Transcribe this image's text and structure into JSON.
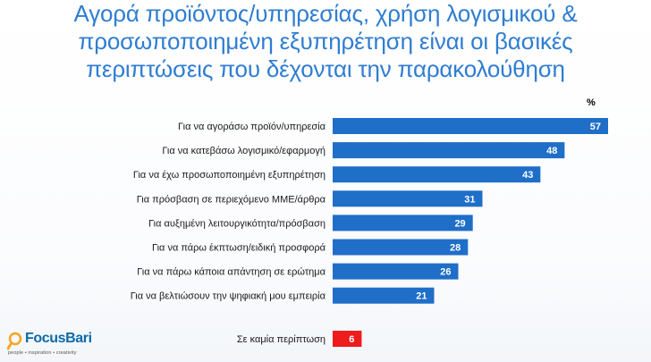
{
  "title": {
    "lines": [
      "Αγορά προϊόντος/υπηρεσίας, χρήση λογισμικού &",
      "προσωποποιημένη εξυπηρέτηση είναι οι βασικές",
      "περιπτώσεις που δέχονται την παρακολούθηση"
    ]
  },
  "colors": {
    "title": "#2f7dd1",
    "bar": "#1f6ec8",
    "highlight_bar": "#ee1c1c"
  },
  "chart_data": {
    "type": "bar",
    "orientation": "horizontal",
    "unit_label": "%",
    "categories": [
      "Για να αγοράσω προϊόν/υπηρεσία",
      "Για να κατεβάσω λογισμικό/εφαρμογή",
      "Για να έχω προσωποποιημένη εξυπηρέτηση",
      "Για πρόσβαση σε περιεχόμενο ΜΜΕ/άρθρα",
      "Για αυξημένη λειτουργικότητα/πρόσβαση",
      "Για να πάρω έκπτωση/ειδική προσφορά",
      "Για να πάρω κάποια απάντηση σε ερώτημα",
      "Για να βελτιώσουν την ψηφιακή μου εμπειρία"
    ],
    "values": [
      57,
      48,
      43,
      31,
      29,
      28,
      26,
      21
    ],
    "extra": {
      "category": "Σε καμία περίπτωση",
      "value": 6
    },
    "xlim": [
      0,
      57
    ]
  },
  "logo": {
    "name": "FocusBari",
    "tagline": "people • inspiration • creativity"
  }
}
